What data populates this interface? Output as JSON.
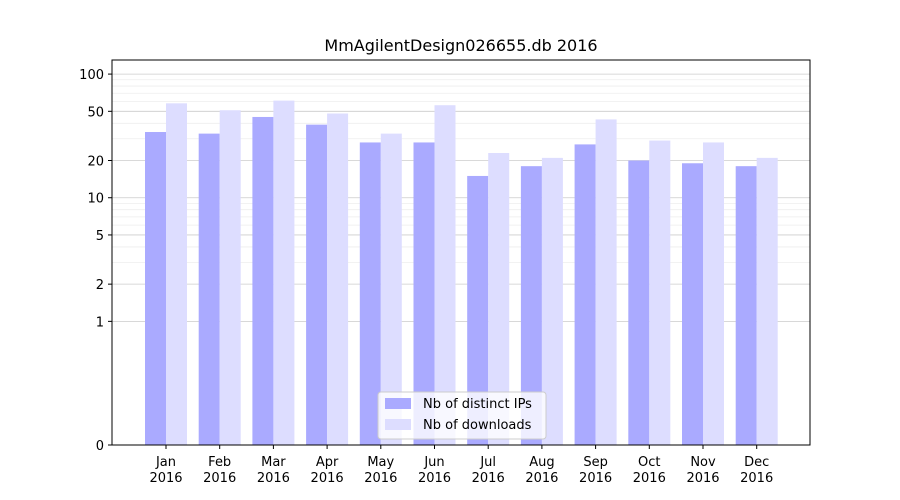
{
  "chart_data": {
    "type": "bar",
    "title": "MmAgilentDesign026655.db 2016",
    "xlabel": "",
    "ylabel": "",
    "y_scale": "symlog",
    "y_ticks": [
      0,
      1,
      2,
      5,
      10,
      20,
      50,
      100
    ],
    "y_tick_labels": [
      "0",
      "1",
      "2",
      "5",
      "10",
      "20",
      "50",
      "100"
    ],
    "ylim": [
      0,
      130
    ],
    "categories": [
      "Jan\n2016",
      "Feb\n2016",
      "Mar\n2016",
      "Apr\n2016",
      "May\n2016",
      "Jun\n2016",
      "Jul\n2016",
      "Aug\n2016",
      "Sep\n2016",
      "Oct\n2016",
      "Nov\n2016",
      "Dec\n2016"
    ],
    "category_lines": [
      [
        "Jan",
        "2016"
      ],
      [
        "Feb",
        "2016"
      ],
      [
        "Mar",
        "2016"
      ],
      [
        "Apr",
        "2016"
      ],
      [
        "May",
        "2016"
      ],
      [
        "Jun",
        "2016"
      ],
      [
        "Jul",
        "2016"
      ],
      [
        "Aug",
        "2016"
      ],
      [
        "Sep",
        "2016"
      ],
      [
        "Oct",
        "2016"
      ],
      [
        "Nov",
        "2016"
      ],
      [
        "Dec",
        "2016"
      ]
    ],
    "series": [
      {
        "name": "Nb of distinct IPs",
        "color": "#aaaaff",
        "values": [
          34,
          33,
          45,
          39,
          28,
          28,
          15,
          18,
          27,
          20,
          19,
          18
        ]
      },
      {
        "name": "Nb of downloads",
        "color": "#ddddff",
        "values": [
          58,
          51,
          61,
          48,
          33,
          56,
          23,
          21,
          43,
          29,
          28,
          21
        ]
      }
    ],
    "grid": true,
    "legend_position": "lower-center"
  }
}
